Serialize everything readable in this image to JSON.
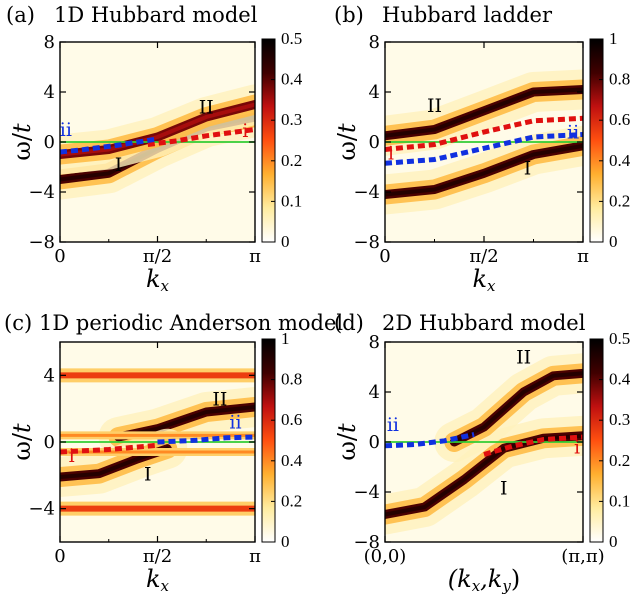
{
  "colors": {
    "dispersion_i": "#e01010",
    "dispersion_ii": "#1030e0",
    "fermi_level": "#33cc33",
    "colormap": [
      "#ffffff",
      "#ffeca0",
      "#ffb030",
      "#ff5010",
      "#c01010",
      "#400000",
      "#000000"
    ]
  },
  "chart_data": [
    {
      "type": "heatmap",
      "panel_label": "(a)",
      "title": "1D Hubbard model",
      "xlabel_main": "k",
      "xlabel_sub": "x",
      "ylabel_main": "ω/",
      "ylabel_italic": "t",
      "xlim": [
        0,
        1
      ],
      "ylim": [
        -8,
        8
      ],
      "xticks": [
        0,
        0.5,
        1
      ],
      "xtick_labels": [
        "0",
        "π/2",
        "π"
      ],
      "yticks": [
        -8,
        -4,
        0,
        4,
        8
      ],
      "ytick_labels": [
        "−8",
        "−4",
        "0",
        "4",
        "8"
      ],
      "colorbar": {
        "vmin": 0,
        "vmax": 0.5,
        "ticks": [
          "0",
          "0.1",
          "0.2",
          "0.3",
          "0.4",
          "0.5"
        ]
      },
      "bands": [
        {
          "label": "I",
          "k": [
            0,
            0.25,
            0.5,
            0.75,
            1
          ],
          "omega": [
            -3.0,
            -2.5,
            -0.5,
            1.2,
            2.0
          ],
          "intensity": 0.45
        },
        {
          "label": "II",
          "k": [
            0,
            0.25,
            0.5,
            0.75,
            1
          ],
          "omega": [
            -1.0,
            -0.6,
            0.4,
            2.0,
            3.0
          ],
          "intensity": 0.35
        }
      ],
      "line_i": {
        "k": [
          0.45,
          0.6,
          0.75,
          0.9,
          1.0
        ],
        "omega": [
          -0.2,
          0.1,
          0.5,
          0.8,
          1.0
        ]
      },
      "line_ii": {
        "k": [
          0,
          0.1,
          0.2,
          0.3,
          0.4,
          0.5
        ],
        "omega": [
          -0.8,
          -0.65,
          -0.45,
          -0.25,
          0.0,
          0.25
        ]
      },
      "band_labels": {
        "I": "I",
        "II": "II",
        "i": "i",
        "ii": "ii"
      },
      "label_positions": {
        "I": [
          0.3,
          -2.3
        ],
        "II": [
          0.75,
          2.3
        ],
        "i": [
          0.95,
          0.4
        ],
        "ii": [
          0.03,
          0.5
        ]
      }
    },
    {
      "type": "heatmap",
      "panel_label": "(b)",
      "title": "Hubbard ladder",
      "xlabel_main": "k",
      "xlabel_sub": "x",
      "ylabel_main": "ω/",
      "ylabel_italic": "t",
      "xlim": [
        0,
        1
      ],
      "ylim": [
        -8,
        8
      ],
      "xticks": [
        0,
        0.5,
        1
      ],
      "xtick_labels": [
        "0",
        "π/2",
        "π"
      ],
      "yticks": [
        -8,
        -4,
        0,
        4,
        8
      ],
      "ytick_labels": [
        "−8",
        "−4",
        "0",
        "4",
        "8"
      ],
      "colorbar": {
        "vmin": 0,
        "vmax": 1,
        "ticks": [
          "0",
          "0.2",
          "0.4",
          "0.6",
          "0.8",
          "1"
        ]
      },
      "bands": [
        {
          "label": "II",
          "k": [
            0,
            0.25,
            0.5,
            0.75,
            1
          ],
          "omega": [
            0.5,
            1.0,
            2.5,
            4.0,
            4.2
          ],
          "intensity": 0.9
        },
        {
          "label": "I",
          "k": [
            0,
            0.25,
            0.5,
            0.75,
            1
          ],
          "omega": [
            -4.2,
            -3.8,
            -2.5,
            -1.0,
            -0.3
          ],
          "intensity": 0.9
        }
      ],
      "line_i": {
        "k": [
          0,
          0.25,
          0.5,
          0.75,
          1.0
        ],
        "omega": [
          -0.6,
          -0.2,
          0.8,
          1.7,
          1.9
        ]
      },
      "line_ii": {
        "k": [
          0,
          0.25,
          0.5,
          0.75,
          1.0
        ],
        "omega": [
          -1.7,
          -1.4,
          -0.5,
          0.4,
          0.6
        ]
      },
      "band_labels": {
        "I": "I",
        "II": "II",
        "i": "i",
        "ii": "ii"
      },
      "label_positions": {
        "I": [
          0.72,
          -2.6
        ],
        "II": [
          0.25,
          2.4
        ],
        "i": [
          0.03,
          -1.4
        ],
        "ii": [
          0.95,
          0.3
        ]
      }
    },
    {
      "type": "heatmap",
      "panel_label": "(c)",
      "title": "1D periodic Anderson model",
      "xlabel_main": "k",
      "xlabel_sub": "x",
      "ylabel_main": "ω/",
      "ylabel_italic": "t",
      "xlim": [
        0,
        1
      ],
      "ylim": [
        -6,
        6
      ],
      "xticks": [
        0,
        0.5,
        1
      ],
      "xtick_labels": [
        "0",
        "π/2",
        "π"
      ],
      "yticks": [
        -4,
        0,
        4
      ],
      "ytick_labels": [
        "−4",
        "0",
        "4"
      ],
      "colorbar": {
        "vmin": 0,
        "vmax": 1,
        "ticks": [
          "0",
          "0.2",
          "0.4",
          "0.6",
          "0.8",
          "1"
        ]
      },
      "flat_bands": [
        4.0,
        -4.0,
        0.4,
        -0.6
      ],
      "bands": [
        {
          "label": "II",
          "k": [
            0.3,
            0.5,
            0.75,
            1.0
          ],
          "omega": [
            0.3,
            0.8,
            1.8,
            2.1
          ],
          "intensity": 0.9
        },
        {
          "label": "I",
          "k": [
            0,
            0.2,
            0.4,
            0.55
          ],
          "omega": [
            -2.1,
            -1.9,
            -1.0,
            -0.4
          ],
          "intensity": 0.9
        }
      ],
      "line_i": {
        "k": [
          0,
          0.25,
          0.5
        ],
        "omega": [
          -0.6,
          -0.45,
          -0.2
        ]
      },
      "line_ii": {
        "k": [
          0.5,
          0.7,
          0.85,
          1.0
        ],
        "omega": [
          0.0,
          0.1,
          0.25,
          0.3
        ]
      },
      "band_labels": {
        "I": "I",
        "II": "II",
        "i": "i",
        "ii": "ii"
      },
      "label_positions": {
        "I": [
          0.45,
          -2.3
        ],
        "II": [
          0.82,
          2.2
        ],
        "i": [
          0.06,
          -1.2
        ],
        "ii": [
          0.9,
          0.8
        ]
      }
    },
    {
      "type": "heatmap",
      "panel_label": "(d)",
      "title": "2D Hubbard model",
      "xlabel_main": "(k",
      "xlabel_sub1": "x",
      "xlabel_mid": ",k",
      "xlabel_sub2": "y",
      "xlabel_end": ")",
      "ylabel_main": "ω/",
      "ylabel_italic": "t",
      "xlim": [
        0,
        1
      ],
      "ylim": [
        -8,
        8
      ],
      "xticks": [
        0,
        1
      ],
      "xtick_labels": [
        "(0,0)",
        "(π,π)"
      ],
      "yticks": [
        -8,
        -4,
        0,
        4,
        8
      ],
      "ytick_labels": [
        "−8",
        "−4",
        "0",
        "4",
        "8"
      ],
      "colorbar": {
        "vmin": 0,
        "vmax": 0.5,
        "ticks": [
          "0",
          "0.1",
          "0.2",
          "0.3",
          "0.4",
          "0.5"
        ]
      },
      "bands": [
        {
          "label": "I",
          "k": [
            0,
            0.2,
            0.4,
            0.6,
            0.8,
            1
          ],
          "omega": [
            -5.8,
            -5.2,
            -3.0,
            -0.5,
            0.3,
            0.5
          ],
          "intensity": 0.45
        },
        {
          "label": "II",
          "k": [
            0.35,
            0.5,
            0.7,
            0.85,
            1
          ],
          "omega": [
            0.0,
            1.2,
            4.0,
            5.3,
            5.5
          ],
          "intensity": 0.45
        }
      ],
      "line_i": {
        "k": [
          0.5,
          0.65,
          0.8,
          1.0
        ],
        "omega": [
          -1.0,
          -0.3,
          0.2,
          0.4
        ]
      },
      "line_ii": {
        "k": [
          0,
          0.15,
          0.3,
          0.45
        ],
        "omega": [
          -0.3,
          -0.2,
          0.1,
          0.6
        ]
      },
      "band_labels": {
        "I": "I",
        "II": "II",
        "i": "i",
        "ii": "ii"
      },
      "label_positions": {
        "I": [
          0.6,
          -4.2
        ],
        "II": [
          0.7,
          6.3
        ],
        "i": [
          0.97,
          -0.9
        ],
        "ii": [
          0.04,
          0.9
        ]
      }
    }
  ]
}
